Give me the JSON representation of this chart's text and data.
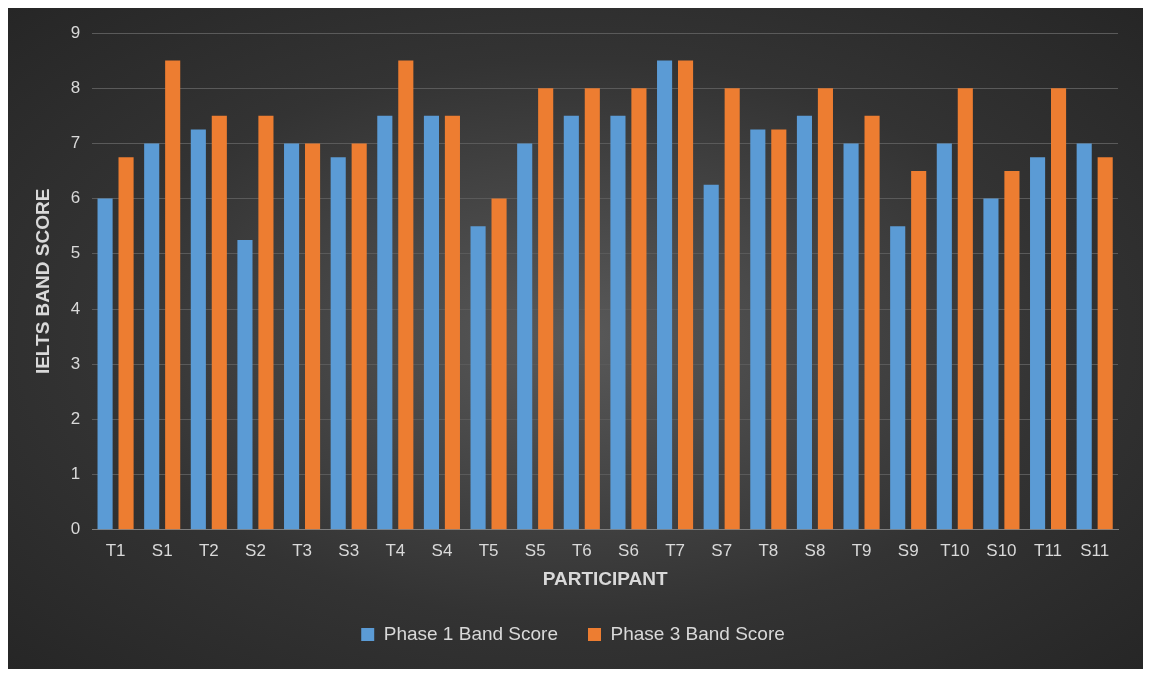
{
  "chart_data": {
    "type": "bar",
    "xlabel": "PARTICIPANT",
    "ylabel": "IELTS BAND SCORE",
    "categories": [
      "T1",
      "S1",
      "T2",
      "S2",
      "T3",
      "S3",
      "T4",
      "S4",
      "T5",
      "S5",
      "T6",
      "S6",
      "T7",
      "S7",
      "T8",
      "S8",
      "T9",
      "S9",
      "T10",
      "S10",
      "T11",
      "S11"
    ],
    "series": [
      {
        "name": "Phase 1 Band Score",
        "color": "#5b9bd5",
        "values": [
          6,
          7,
          7.25,
          5.25,
          7,
          6.75,
          7.5,
          7.5,
          5.5,
          7,
          7.5,
          7.5,
          8.5,
          6.25,
          7.25,
          7.5,
          7,
          5.5,
          7,
          6,
          6.75,
          7
        ]
      },
      {
        "name": "Phase 3 Band Score",
        "color": "#ed7d31",
        "values": [
          6.75,
          8.5,
          7.5,
          7.5,
          7,
          7,
          8.5,
          7.5,
          6,
          8,
          8,
          8,
          8.5,
          8,
          7.25,
          8,
          7.5,
          6.5,
          8,
          6.5,
          8,
          6.75
        ]
      }
    ],
    "ylim": [
      0,
      9
    ],
    "yticks": [
      0,
      1,
      2,
      3,
      4,
      5,
      6,
      7,
      8,
      9
    ],
    "grid": "y",
    "legend": "bottom"
  }
}
